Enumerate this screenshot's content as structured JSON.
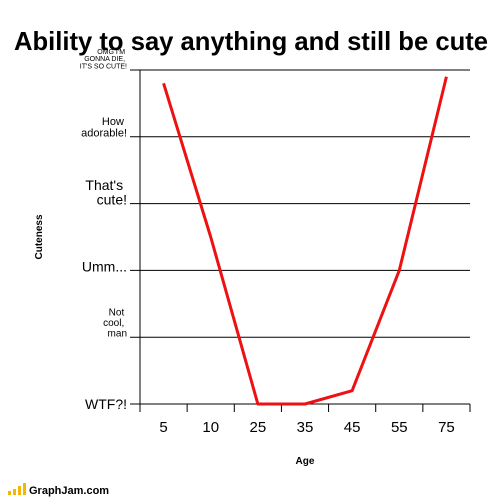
{
  "chart_data": {
    "type": "line",
    "title": "Ability to say anything and still be cute",
    "x_label": "Age",
    "y_label": "Cuteness",
    "categories": [
      "5",
      "10",
      "25",
      "35",
      "45",
      "55",
      "75"
    ],
    "series": [
      {
        "name": "Cuteness",
        "color": "#ee1111",
        "values": [
          4.8,
          2.5,
          0,
          0,
          0.2,
          2.0,
          4.9
        ]
      }
    ],
    "ylim": [
      0,
      5
    ],
    "yticks": [
      {
        "value": 0,
        "label": "WTF?!"
      },
      {
        "value": 1,
        "label": "Not\ncool,\nman"
      },
      {
        "value": 2,
        "label": "Umm..."
      },
      {
        "value": 3,
        "label": "That's\ncute!"
      },
      {
        "value": 4,
        "label": "How\nadorable!"
      },
      {
        "value": 5,
        "label": "OMG I'M\nGONNA DIE,\nIT'S SO CUTE!"
      }
    ],
    "grid": true,
    "footer": "GraphJam.com"
  }
}
